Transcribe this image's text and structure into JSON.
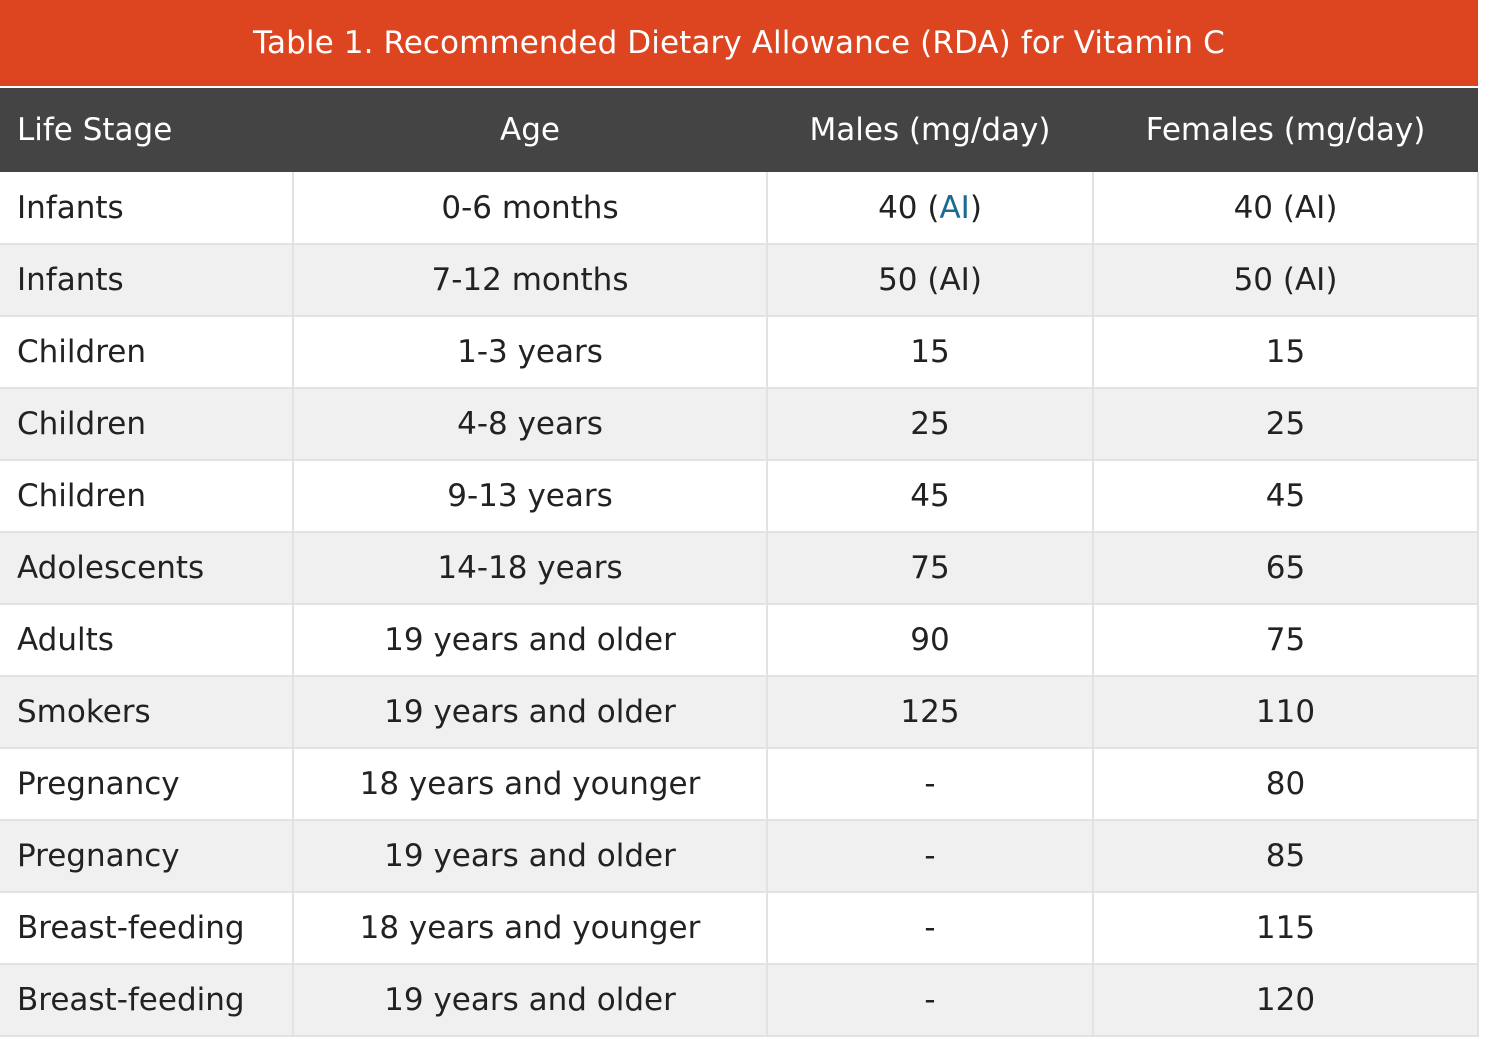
{
  "table": {
    "caption": "Table 1. Recommended Dietary Allowance (RDA) for Vitamin C",
    "headers": [
      "Life Stage",
      "Age",
      "Males (mg/day)",
      "Females (mg/day)"
    ],
    "first_row_males": {
      "value": "40",
      "open": " (",
      "link": "AI",
      "close": ")"
    },
    "rows": [
      {
        "stage": "Infants",
        "age": "0-6 months",
        "males": "40 (AI)",
        "females": "40 (AI)"
      },
      {
        "stage": "Infants",
        "age": "7-12 months",
        "males": "50 (AI)",
        "females": "50 (AI)"
      },
      {
        "stage": "Children",
        "age": "1-3 years",
        "males": "15",
        "females": "15"
      },
      {
        "stage": "Children",
        "age": "4-8 years",
        "males": "25",
        "females": "25"
      },
      {
        "stage": "Children",
        "age": "9-13 years",
        "males": "45",
        "females": "45"
      },
      {
        "stage": "Adolescents",
        "age": "14-18 years",
        "males": "75",
        "females": "65"
      },
      {
        "stage": "Adults",
        "age": "19 years and older",
        "males": "90",
        "females": "75"
      },
      {
        "stage": "Smokers",
        "age": "19 years and older",
        "males": "125",
        "females": "110"
      },
      {
        "stage": "Pregnancy",
        "age": "18 years and younger",
        "males": "-",
        "females": "80"
      },
      {
        "stage": "Pregnancy",
        "age": "19 years and older",
        "males": "-",
        "females": "85"
      },
      {
        "stage": "Breast-feeding",
        "age": "18 years and younger",
        "males": "-",
        "females": "115"
      },
      {
        "stage": "Breast-feeding",
        "age": "19 years and older",
        "males": "-",
        "females": "120"
      }
    ]
  },
  "colors": {
    "caption_bg": "#dc451f",
    "header_bg": "#444444",
    "row_alt_bg": "#f0f0f0",
    "link": "#1a6b93"
  }
}
